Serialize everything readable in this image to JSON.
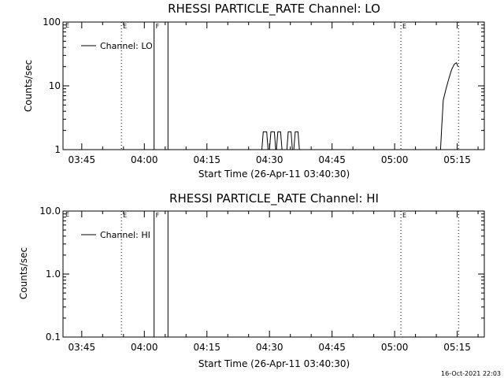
{
  "footer_timestamp": "16-Oct-2021 22:03",
  "chart_data": [
    {
      "type": "line",
      "title": "RHESSI PARTICLE_RATE Channel: LO",
      "xlabel": "Start Time (26-Apr-11 03:40:30)",
      "ylabel": "Counts/sec",
      "y_scale": "log",
      "ylim": [
        1,
        100
      ],
      "y_ticks": [
        {
          "v": 1,
          "label": "1"
        },
        {
          "v": 10,
          "label": "10"
        },
        {
          "v": 100,
          "label": "100"
        }
      ],
      "xlim": [
        "03:40:30",
        "05:21:30"
      ],
      "x_ticks": [
        "03:45",
        "04:00",
        "04:15",
        "04:30",
        "04:45",
        "05:00",
        "05:15"
      ],
      "legend": {
        "placement": "top-left",
        "entries": [
          "Channel: LO"
        ]
      },
      "markers": [
        {
          "time": "03:54:30",
          "style": "dotted",
          "label": "E"
        },
        {
          "time": "04:02:20",
          "style": "solid",
          "label": "F"
        },
        {
          "time": "04:05:40",
          "style": "solid",
          "label": ""
        },
        {
          "time": "05:01:30",
          "style": "dotted",
          "label": "E"
        },
        {
          "time": "05:15:20",
          "style": "dotted",
          "label": ""
        }
      ],
      "corner_marks": {
        "left": "E"
      },
      "series": [
        {
          "name": "Channel: LO",
          "segments": [
            [
              [
                "04:28:10",
                1
              ],
              [
                "04:28:30",
                1.9
              ],
              [
                "04:29:20",
                1.9
              ],
              [
                "04:29:40",
                1
              ]
            ],
            [
              [
                "04:30:00",
                1
              ],
              [
                "04:30:20",
                1.9
              ],
              [
                "04:31:10",
                1.9
              ],
              [
                "04:31:30",
                1
              ]
            ],
            [
              [
                "04:31:40",
                1
              ],
              [
                "04:32:00",
                1.9
              ],
              [
                "04:32:40",
                1.9
              ],
              [
                "04:33:00",
                1
              ]
            ],
            [
              [
                "04:34:10",
                1
              ],
              [
                "04:34:30",
                1.9
              ],
              [
                "04:35:10",
                1.9
              ],
              [
                "04:35:30",
                1
              ]
            ],
            [
              [
                "04:35:50",
                1
              ],
              [
                "04:36:10",
                1.9
              ],
              [
                "04:36:50",
                1.9
              ],
              [
                "04:37:10",
                1
              ]
            ],
            [
              [
                "05:11:00",
                1
              ],
              [
                "05:11:20",
                2.5
              ],
              [
                "05:11:40",
                6
              ],
              [
                "05:12:20",
                9
              ],
              [
                "05:13:00",
                13
              ],
              [
                "05:13:40",
                18
              ],
              [
                "05:14:20",
                22
              ],
              [
                "05:14:50",
                23
              ],
              [
                "05:15:10",
                20
              ]
            ]
          ]
        }
      ]
    },
    {
      "type": "line",
      "title": "RHESSI PARTICLE_RATE Channel: HI",
      "xlabel": "Start Time (26-Apr-11 03:40:30)",
      "ylabel": "Counts/sec",
      "y_scale": "log",
      "ylim": [
        0.1,
        10
      ],
      "y_ticks": [
        {
          "v": 0.1,
          "label": "0.1"
        },
        {
          "v": 1,
          "label": "1.0"
        },
        {
          "v": 10,
          "label": "10.0"
        }
      ],
      "xlim": [
        "03:40:30",
        "05:21:30"
      ],
      "x_ticks": [
        "03:45",
        "04:00",
        "04:15",
        "04:30",
        "04:45",
        "05:00",
        "05:15"
      ],
      "legend": {
        "placement": "top-left",
        "entries": [
          "Channel: HI"
        ]
      },
      "markers": [
        {
          "time": "03:54:30",
          "style": "dotted",
          "label": "E"
        },
        {
          "time": "04:02:20",
          "style": "solid",
          "label": "F"
        },
        {
          "time": "04:05:40",
          "style": "solid",
          "label": ""
        },
        {
          "time": "05:01:30",
          "style": "dotted",
          "label": "E"
        },
        {
          "time": "05:15:20",
          "style": "dotted",
          "label": ""
        }
      ],
      "corner_marks": {
        "left": "E"
      },
      "series": [
        {
          "name": "Channel: HI",
          "segments": []
        }
      ]
    }
  ]
}
